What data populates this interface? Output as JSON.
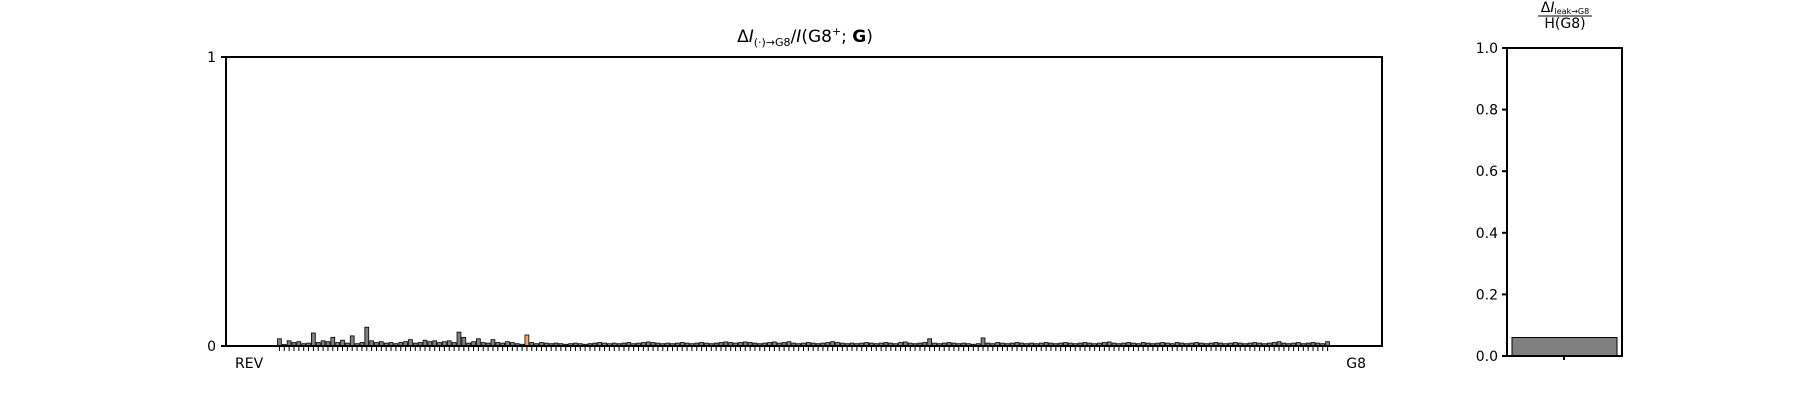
{
  "chart_data": [
    {
      "type": "bar",
      "title": "ΔI(·)→G8/I(G8⁺; G)",
      "title_parts": {
        "delta": "Δ",
        "i1": "I",
        "sub": "(·)→G8",
        "slash": "/",
        "i2": "I",
        "rest": "(G8",
        "sup": "+",
        "sep": "; ",
        "bold": "G",
        "close": ")"
      },
      "xlabel": "",
      "ylabel": "",
      "ylim": [
        0,
        1
      ],
      "yticks": [
        "0",
        "1"
      ],
      "x_tick_first": "REV",
      "x_tick_last": "G8",
      "grid": false,
      "bar_color": "#808080",
      "highlight_color": "#f0a868",
      "values": [
        0.025,
        0.005,
        0.018,
        0.012,
        0.015,
        0.008,
        0.01,
        0.045,
        0.012,
        0.018,
        0.015,
        0.03,
        0.012,
        0.02,
        0.01,
        0.035,
        0.008,
        0.012,
        0.065,
        0.018,
        0.012,
        0.015,
        0.01,
        0.012,
        0.008,
        0.012,
        0.015,
        0.022,
        0.01,
        0.012,
        0.02,
        0.015,
        0.018,
        0.012,
        0.015,
        0.018,
        0.012,
        0.048,
        0.03,
        0.01,
        0.015,
        0.025,
        0.012,
        0.01,
        0.022,
        0.012,
        0.01,
        0.015,
        0.012,
        0.008,
        0.006,
        0.038,
        0.012,
        0.008,
        0.012,
        0.01,
        0.008,
        0.01,
        0.008,
        0.006,
        0.008,
        0.01,
        0.008,
        0.006,
        0.008,
        0.01,
        0.012,
        0.01,
        0.008,
        0.01,
        0.008,
        0.01,
        0.012,
        0.008,
        0.01,
        0.012,
        0.014,
        0.012,
        0.01,
        0.008,
        0.01,
        0.008,
        0.01,
        0.012,
        0.01,
        0.008,
        0.01,
        0.012,
        0.01,
        0.008,
        0.01,
        0.012,
        0.014,
        0.012,
        0.01,
        0.012,
        0.014,
        0.012,
        0.01,
        0.008,
        0.01,
        0.012,
        0.014,
        0.01,
        0.012,
        0.015,
        0.01,
        0.008,
        0.01,
        0.012,
        0.01,
        0.008,
        0.01,
        0.012,
        0.015,
        0.012,
        0.01,
        0.008,
        0.01,
        0.008,
        0.01,
        0.012,
        0.01,
        0.008,
        0.01,
        0.012,
        0.01,
        0.008,
        0.012,
        0.014,
        0.01,
        0.008,
        0.01,
        0.012,
        0.025,
        0.01,
        0.008,
        0.01,
        0.012,
        0.01,
        0.008,
        0.01,
        0.008,
        0.006,
        0.008,
        0.028,
        0.01,
        0.008,
        0.012,
        0.01,
        0.008,
        0.01,
        0.012,
        0.01,
        0.008,
        0.01,
        0.008,
        0.01,
        0.012,
        0.01,
        0.008,
        0.01,
        0.012,
        0.01,
        0.008,
        0.01,
        0.012,
        0.01,
        0.008,
        0.01,
        0.012,
        0.014,
        0.01,
        0.008,
        0.01,
        0.012,
        0.01,
        0.008,
        0.012,
        0.01,
        0.008,
        0.01,
        0.012,
        0.01,
        0.008,
        0.012,
        0.01,
        0.008,
        0.01,
        0.012,
        0.01,
        0.008,
        0.01,
        0.012,
        0.01,
        0.008,
        0.01,
        0.012,
        0.01,
        0.008,
        0.01,
        0.012,
        0.01,
        0.008,
        0.01,
        0.012,
        0.015,
        0.01,
        0.008,
        0.01,
        0.012,
        0.008,
        0.01,
        0.012,
        0.01,
        0.008,
        0.015
      ],
      "highlight_indices": [
        51
      ]
    },
    {
      "type": "bar",
      "title": "ΔIleak→G8 / H(G8)",
      "title_parts": {
        "num_delta": "Δ",
        "num_i": "I",
        "num_sub": "leak→G8",
        "den": "H(G8)"
      },
      "xlabel": "",
      "ylabel": "",
      "ylim": [
        0,
        1.0
      ],
      "yticks": [
        "0.0",
        "0.2",
        "0.4",
        "0.6",
        "0.8",
        "1.0"
      ],
      "grid": false,
      "bar_color": "#808080",
      "values": [
        0.06
      ]
    }
  ]
}
